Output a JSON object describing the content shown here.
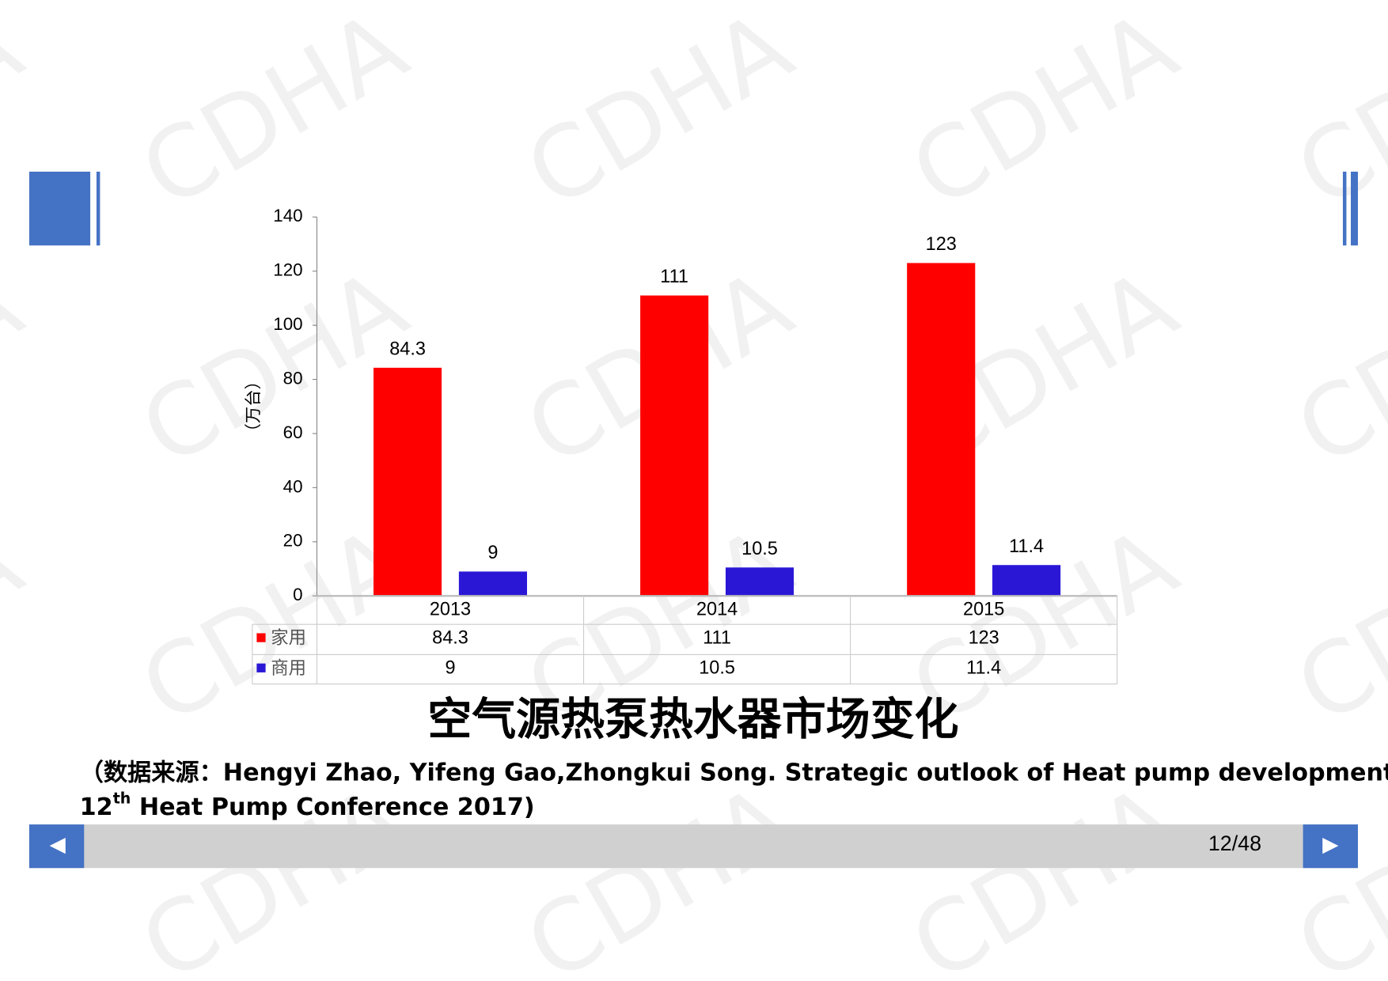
{
  "watermark": "CDHA",
  "chart_data": {
    "type": "bar",
    "title": "空气源热泵热水器市场变化",
    "y_label": "（万台）",
    "categories": [
      "2013",
      "2014",
      "2015"
    ],
    "series": [
      {
        "name": "家用",
        "color": "#ff0000",
        "values": [
          84.3,
          111,
          123
        ]
      },
      {
        "name": "商用",
        "color": "#2a17d6",
        "values": [
          9,
          10.5,
          11.4
        ]
      }
    ],
    "ylim": [
      0,
      140
    ],
    "yticks": [
      0,
      20,
      40,
      60,
      80,
      100,
      120,
      140
    ],
    "grid": false,
    "data_table": true
  },
  "source": {
    "line1": "（数据来源：Hengyi Zhao, Yifeng Gao,Zhongkui Song. Strategic outlook of Heat pump development in China.",
    "line2_number": "12",
    "line2_sup": "th",
    "line2_rest": " Heat Pump Conference 2017)"
  },
  "page_number": "12/48"
}
